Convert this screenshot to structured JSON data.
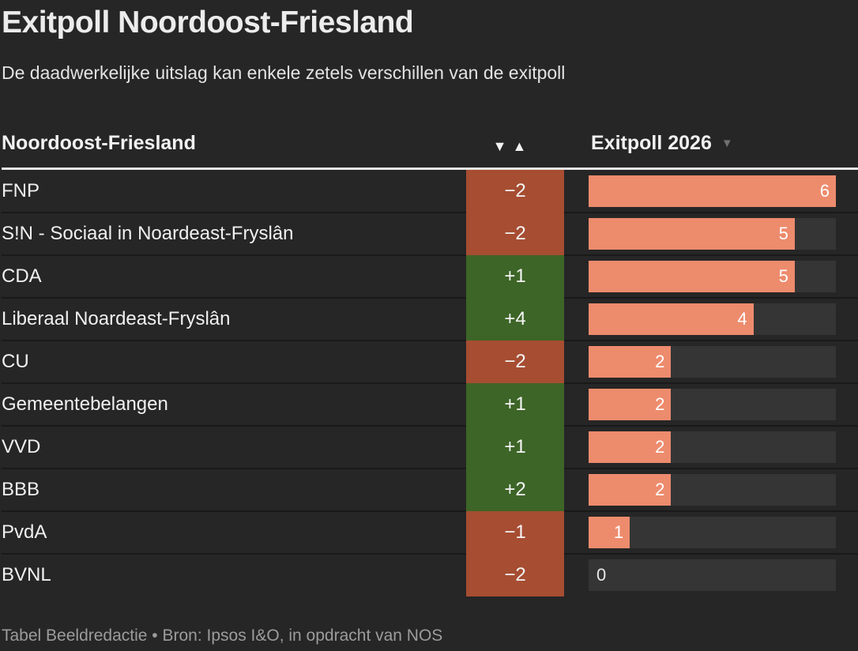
{
  "page": {
    "title": "Exitpoll Noordoost-Friesland",
    "subtitle": "De daadwerkelijke uitslag kan enkele zetels verschillen van de exitpoll",
    "source": "Tabel Beeldredactie • Bron: Ipsos I&O, in opdracht van NOS"
  },
  "table": {
    "region_header": "Noordoost-Friesland",
    "value_header": "Exitpoll 2026",
    "icons": {
      "sort_desc": "▼",
      "sort_asc": "▲",
      "sort_indicator": "▼"
    },
    "max_seats": 6,
    "rows": [
      {
        "party": "FNP",
        "change": "−2",
        "direction": "down",
        "seats": 6
      },
      {
        "party": "S!N - Sociaal in Noardeast-Fryslân",
        "change": "−2",
        "direction": "down",
        "seats": 5
      },
      {
        "party": "CDA",
        "change": "+1",
        "direction": "up",
        "seats": 5
      },
      {
        "party": "Liberaal Noardeast-Fryslân",
        "change": "+4",
        "direction": "up",
        "seats": 4
      },
      {
        "party": "CU",
        "change": "−2",
        "direction": "down",
        "seats": 2
      },
      {
        "party": "Gemeentebelangen",
        "change": "+1",
        "direction": "up",
        "seats": 2
      },
      {
        "party": "VVD",
        "change": "+1",
        "direction": "up",
        "seats": 2
      },
      {
        "party": "BBB",
        "change": "+2",
        "direction": "up",
        "seats": 2
      },
      {
        "party": "PvdA",
        "change": "−1",
        "direction": "down",
        "seats": 1
      },
      {
        "party": "BVNL",
        "change": "−2",
        "direction": "down",
        "seats": 0
      }
    ]
  },
  "colors": {
    "background": "#262626",
    "increase_green": "#3d6527",
    "decrease_red": "#a64d32",
    "bar_fill": "#ed8b6d",
    "bar_track": "#353535",
    "header_rule": "#e6e6e6",
    "row_separator": "#191919",
    "text_primary": "#f0f0f0",
    "text_muted": "#9c9c9c"
  },
  "chart_data": {
    "type": "bar",
    "orientation": "horizontal",
    "title": "Exitpoll Noordoost-Friesland",
    "subtitle": "De daadwerkelijke uitslag kan enkele zetels verschillen van de exitpoll",
    "series_label": "Exitpoll 2026",
    "categories": [
      "FNP",
      "S!N - Sociaal in Noardeast-Fryslân",
      "CDA",
      "Liberaal Noardeast-Fryslân",
      "CU",
      "Gemeentebelangen",
      "VVD",
      "BBB",
      "PvdA",
      "BVNL"
    ],
    "values": [
      6,
      5,
      5,
      4,
      2,
      2,
      2,
      2,
      1,
      0
    ],
    "seat_changes": [
      -2,
      -2,
      1,
      4,
      -2,
      1,
      1,
      2,
      -1,
      -2
    ],
    "xlim": [
      0,
      6
    ],
    "grid": false,
    "legend_position": "none",
    "annotation": "Tabel Beeldredactie • Bron: Ipsos I&O, in opdracht van NOS"
  }
}
